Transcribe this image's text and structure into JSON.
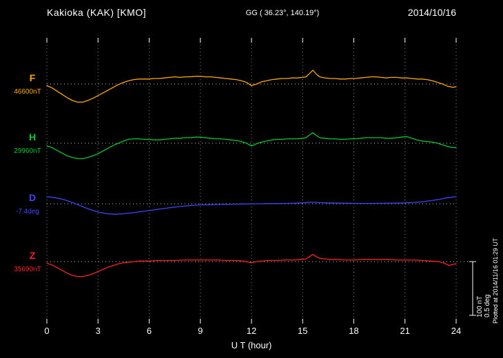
{
  "header": {
    "station": "Kakioka (KAK)  [KMO]",
    "coords": "GG ( 36.23°, 140.19°)",
    "date": "2014/10/16"
  },
  "axis": {
    "xlabel": "U T (hour)"
  },
  "scale_bar": {
    "nt_label": "100 nT",
    "deg_label": "0.5 deg"
  },
  "footer": {
    "plotted_at": "Plotted at 2014/11/16 01:29 UT"
  },
  "chart_data": {
    "type": "line",
    "title": "Kakioka (KAK) [KMO] magnetogram 2014/10/16",
    "x": {
      "label": "U T (hour)",
      "unit": "hour UT",
      "range": [
        0,
        24
      ],
      "ticks": [
        0,
        3,
        6,
        9,
        12,
        15,
        18,
        21,
        24
      ]
    },
    "grid": "dotted vertical lines at each 3-hour tick; dotted horizontal baseline for each trace",
    "legend_position": "left",
    "scale_reference": {
      "nT_per_bar": 100,
      "deg_per_bar": 0.5
    },
    "series": [
      {
        "name": "F",
        "unit": "nT",
        "baseline": 46600,
        "baseline_label": "46600nT",
        "color": "#ffaa00",
        "points": [
          [
            0,
            -3
          ],
          [
            0.3,
            -7
          ],
          [
            0.6,
            -13
          ],
          [
            0.9,
            -19
          ],
          [
            1.2,
            -25
          ],
          [
            1.5,
            -30
          ],
          [
            1.8,
            -33
          ],
          [
            2.1,
            -33
          ],
          [
            2.4,
            -30
          ],
          [
            2.7,
            -26
          ],
          [
            3,
            -21
          ],
          [
            3.3,
            -16
          ],
          [
            3.6,
            -11
          ],
          [
            3.9,
            -6
          ],
          [
            4.2,
            -1
          ],
          [
            4.5,
            3
          ],
          [
            4.8,
            6
          ],
          [
            5.1,
            8
          ],
          [
            5.4,
            9
          ],
          [
            5.7,
            9
          ],
          [
            6,
            9
          ],
          [
            6.3,
            10
          ],
          [
            6.6,
            10
          ],
          [
            6.9,
            11
          ],
          [
            7.2,
            12
          ],
          [
            7.5,
            13
          ],
          [
            7.8,
            12
          ],
          [
            8.1,
            13
          ],
          [
            8.4,
            13
          ],
          [
            8.7,
            14
          ],
          [
            9,
            14
          ],
          [
            9.3,
            13
          ],
          [
            9.6,
            13
          ],
          [
            9.9,
            12
          ],
          [
            10.2,
            11
          ],
          [
            10.5,
            10
          ],
          [
            10.8,
            9
          ],
          [
            11.1,
            8
          ],
          [
            11.4,
            6
          ],
          [
            11.7,
            3
          ],
          [
            12,
            -3
          ],
          [
            12.3,
            0
          ],
          [
            12.6,
            4
          ],
          [
            12.9,
            6
          ],
          [
            13.2,
            8
          ],
          [
            13.5,
            9
          ],
          [
            13.8,
            10
          ],
          [
            14.1,
            10
          ],
          [
            14.4,
            11
          ],
          [
            14.7,
            11
          ],
          [
            15,
            12
          ],
          [
            15.2,
            13
          ],
          [
            15.4,
            19
          ],
          [
            15.6,
            25
          ],
          [
            15.8,
            18
          ],
          [
            16,
            13
          ],
          [
            16.3,
            11
          ],
          [
            16.6,
            10
          ],
          [
            16.9,
            10
          ],
          [
            17.2,
            9
          ],
          [
            17.5,
            9
          ],
          [
            17.8,
            10
          ],
          [
            18.1,
            10
          ],
          [
            18.4,
            11
          ],
          [
            18.7,
            12
          ],
          [
            19,
            13
          ],
          [
            19.3,
            13
          ],
          [
            19.6,
            12
          ],
          [
            19.9,
            11
          ],
          [
            20.2,
            12
          ],
          [
            20.5,
            12
          ],
          [
            20.8,
            11
          ],
          [
            21.1,
            11
          ],
          [
            21.4,
            10
          ],
          [
            21.7,
            9
          ],
          [
            22,
            9
          ],
          [
            22.3,
            8
          ],
          [
            22.6,
            6
          ],
          [
            22.9,
            3
          ],
          [
            23.2,
            0
          ],
          [
            23.5,
            -4
          ],
          [
            23.8,
            -6
          ],
          [
            24,
            -5
          ]
        ]
      },
      {
        "name": "H",
        "unit": "nT",
        "baseline": 29960,
        "baseline_label": "29960nT",
        "color": "#00cc33",
        "points": [
          [
            0,
            -5
          ],
          [
            0.3,
            -8
          ],
          [
            0.6,
            -13
          ],
          [
            0.9,
            -18
          ],
          [
            1.2,
            -23
          ],
          [
            1.5,
            -26
          ],
          [
            1.8,
            -28
          ],
          [
            2.1,
            -28
          ],
          [
            2.4,
            -26
          ],
          [
            2.7,
            -23
          ],
          [
            3,
            -19
          ],
          [
            3.3,
            -14
          ],
          [
            3.6,
            -9
          ],
          [
            3.9,
            -4
          ],
          [
            4.2,
            0
          ],
          [
            4.5,
            4
          ],
          [
            4.8,
            7
          ],
          [
            5.1,
            8
          ],
          [
            5.4,
            8
          ],
          [
            5.7,
            7
          ],
          [
            6,
            7
          ],
          [
            6.3,
            6
          ],
          [
            6.6,
            6
          ],
          [
            6.9,
            7
          ],
          [
            7.2,
            8
          ],
          [
            7.5,
            9
          ],
          [
            7.8,
            9
          ],
          [
            8.1,
            10
          ],
          [
            8.4,
            10
          ],
          [
            8.7,
            11
          ],
          [
            9,
            11
          ],
          [
            9.3,
            10
          ],
          [
            9.6,
            9
          ],
          [
            9.9,
            8
          ],
          [
            10.2,
            8
          ],
          [
            10.5,
            7
          ],
          [
            10.8,
            6
          ],
          [
            11.1,
            5
          ],
          [
            11.4,
            3
          ],
          [
            11.7,
            0
          ],
          [
            12,
            -5
          ],
          [
            12.3,
            -1
          ],
          [
            12.6,
            2
          ],
          [
            12.9,
            4
          ],
          [
            13.2,
            6
          ],
          [
            13.5,
            7
          ],
          [
            13.8,
            7
          ],
          [
            14.1,
            8
          ],
          [
            14.4,
            8
          ],
          [
            14.7,
            8
          ],
          [
            15,
            9
          ],
          [
            15.2,
            10
          ],
          [
            15.4,
            15
          ],
          [
            15.6,
            19
          ],
          [
            15.8,
            14
          ],
          [
            16,
            10
          ],
          [
            16.3,
            9
          ],
          [
            16.6,
            8
          ],
          [
            16.9,
            8
          ],
          [
            17.2,
            7
          ],
          [
            17.5,
            7
          ],
          [
            17.8,
            8
          ],
          [
            18.1,
            8
          ],
          [
            18.4,
            9
          ],
          [
            18.7,
            10
          ],
          [
            19,
            10
          ],
          [
            19.3,
            10
          ],
          [
            19.6,
            10
          ],
          [
            19.9,
            9
          ],
          [
            20.2,
            9
          ],
          [
            20.5,
            10
          ],
          [
            20.8,
            11
          ],
          [
            21.1,
            12
          ],
          [
            21.4,
            9
          ],
          [
            21.7,
            6
          ],
          [
            22,
            4
          ],
          [
            22.3,
            3
          ],
          [
            22.6,
            2
          ],
          [
            22.9,
            0
          ],
          [
            23.2,
            -3
          ],
          [
            23.5,
            -6
          ],
          [
            23.8,
            -8
          ],
          [
            24,
            -8
          ]
        ]
      },
      {
        "name": "D",
        "unit": "deg",
        "baseline": -7.4,
        "baseline_label": "-7.4deg",
        "color": "#4444ff",
        "points": [
          [
            0,
            0.065
          ],
          [
            0.5,
            0.055
          ],
          [
            1,
            0.038
          ],
          [
            1.5,
            0.012
          ],
          [
            2,
            -0.02
          ],
          [
            2.5,
            -0.05
          ],
          [
            3,
            -0.075
          ],
          [
            3.5,
            -0.09
          ],
          [
            4,
            -0.095
          ],
          [
            4.5,
            -0.09
          ],
          [
            5,
            -0.082
          ],
          [
            5.5,
            -0.072
          ],
          [
            6,
            -0.062
          ],
          [
            6.5,
            -0.05
          ],
          [
            7,
            -0.04
          ],
          [
            7.5,
            -0.03
          ],
          [
            8,
            -0.022
          ],
          [
            8.5,
            -0.015
          ],
          [
            9,
            -0.01
          ],
          [
            9.5,
            -0.008
          ],
          [
            10,
            -0.006
          ],
          [
            10.5,
            -0.005
          ],
          [
            11,
            -0.003
          ],
          [
            11.5,
            -0.002
          ],
          [
            12,
            0
          ],
          [
            12.5,
            0
          ],
          [
            13,
            0.002
          ],
          [
            13.5,
            0.002
          ],
          [
            14,
            0.003
          ],
          [
            14.5,
            0.005
          ],
          [
            15,
            0.008
          ],
          [
            15.5,
            0.015
          ],
          [
            16,
            0.01
          ],
          [
            16.5,
            0.008
          ],
          [
            17,
            0.006
          ],
          [
            17.5,
            0.005
          ],
          [
            18,
            0.004
          ],
          [
            18.5,
            0.003
          ],
          [
            19,
            0.003
          ],
          [
            19.5,
            0.004
          ],
          [
            20,
            0.005
          ],
          [
            20.5,
            0.006
          ],
          [
            21,
            0.008
          ],
          [
            21.5,
            0.012
          ],
          [
            22,
            0.018
          ],
          [
            22.5,
            0.028
          ],
          [
            23,
            0.04
          ],
          [
            23.5,
            0.055
          ],
          [
            24,
            0.065
          ]
        ]
      },
      {
        "name": "Z",
        "unit": "nT",
        "baseline": 35690,
        "baseline_label": "35690nT",
        "color": "#ff2222",
        "points": [
          [
            0,
            -3
          ],
          [
            0.3,
            -6
          ],
          [
            0.6,
            -11
          ],
          [
            0.9,
            -16
          ],
          [
            1.2,
            -21
          ],
          [
            1.5,
            -25
          ],
          [
            1.8,
            -27
          ],
          [
            2.1,
            -27
          ],
          [
            2.4,
            -25
          ],
          [
            2.7,
            -22
          ],
          [
            3,
            -18
          ],
          [
            3.3,
            -14
          ],
          [
            3.6,
            -10
          ],
          [
            3.9,
            -7
          ],
          [
            4.2,
            -4
          ],
          [
            4.5,
            -2
          ],
          [
            4.8,
            -1
          ],
          [
            5.1,
            0
          ],
          [
            5.4,
            1
          ],
          [
            5.7,
            1
          ],
          [
            6,
            1
          ],
          [
            6.5,
            2
          ],
          [
            7,
            2
          ],
          [
            7.5,
            2
          ],
          [
            8,
            3
          ],
          [
            8.5,
            3
          ],
          [
            9,
            3
          ],
          [
            9.5,
            3
          ],
          [
            10,
            3
          ],
          [
            10.5,
            2
          ],
          [
            11,
            2
          ],
          [
            11.5,
            1
          ],
          [
            12,
            -2
          ],
          [
            12.3,
            0
          ],
          [
            12.6,
            1
          ],
          [
            13,
            2
          ],
          [
            13.5,
            2
          ],
          [
            14,
            3
          ],
          [
            14.5,
            3
          ],
          [
            15,
            4
          ],
          [
            15.2,
            5
          ],
          [
            15.4,
            9
          ],
          [
            15.6,
            13
          ],
          [
            15.8,
            9
          ],
          [
            16,
            6
          ],
          [
            16.3,
            5
          ],
          [
            16.6,
            4
          ],
          [
            17,
            4
          ],
          [
            17.5,
            3
          ],
          [
            18,
            3
          ],
          [
            18.5,
            4
          ],
          [
            19,
            4
          ],
          [
            19.5,
            4
          ],
          [
            20,
            4
          ],
          [
            20.5,
            3
          ],
          [
            21,
            3
          ],
          [
            21.5,
            3
          ],
          [
            22,
            2
          ],
          [
            22.5,
            1
          ],
          [
            23,
            0
          ],
          [
            23.3,
            -3
          ],
          [
            23.6,
            -7
          ],
          [
            23.8,
            -5
          ],
          [
            24,
            -4
          ]
        ]
      }
    ]
  }
}
